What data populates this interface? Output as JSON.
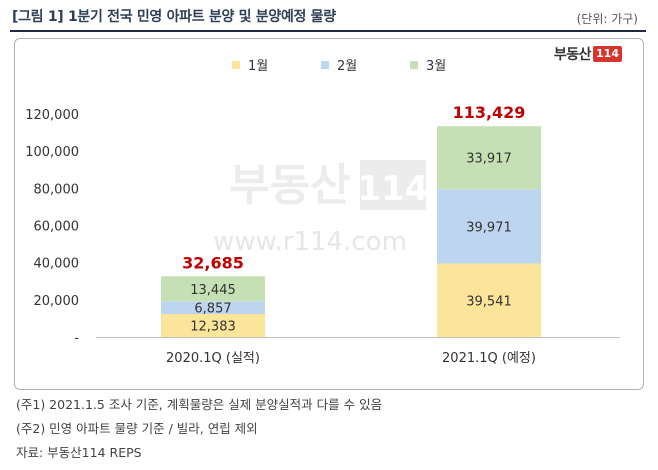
{
  "title": "[그림 1] 1분기 전국 민영 아파트 분양 및 분양예정 물량",
  "unit_label": "(단위: 가구)",
  "logo": {
    "text": "부동산",
    "badge": "114"
  },
  "watermark": {
    "url": "www.r114.com"
  },
  "colors": {
    "jan": "#fbe59a",
    "feb": "#bdd5ee",
    "mar": "#c5e0b4",
    "total_label": "#c00000",
    "title": "#2f3d55"
  },
  "chart_data": {
    "type": "bar",
    "stacked": true,
    "categories": [
      "2020.1Q (실적)",
      "2021.1Q (예정)"
    ],
    "series": [
      {
        "name": "1월",
        "values": [
          12383,
          39541
        ]
      },
      {
        "name": "2월",
        "values": [
          6857,
          39971
        ]
      },
      {
        "name": "3월",
        "values": [
          13445,
          33917
        ]
      }
    ],
    "totals": [
      32685,
      113429
    ],
    "value_labels": [
      [
        "12,383",
        "6,857",
        "13,445"
      ],
      [
        "39,541",
        "39,971",
        "33,917"
      ]
    ],
    "total_labels": [
      "32,685",
      "113,429"
    ],
    "ylim": [
      0,
      120000
    ],
    "yticks": [
      "-",
      "20,000",
      "40,000",
      "60,000",
      "80,000",
      "100,000",
      "120,000"
    ],
    "ytick_values": [
      0,
      20000,
      40000,
      60000,
      80000,
      100000,
      120000
    ],
    "grid": false,
    "legend_position": "top-center"
  },
  "notes": [
    "(주1) 2021.1.5 조사 기준, 계획물량은 실제 분양실적과 다를 수 있음",
    "(주2) 민영 아파트 물량 기준 / 빌라, 연립 제외",
    "자료: 부동산114 REPS"
  ]
}
